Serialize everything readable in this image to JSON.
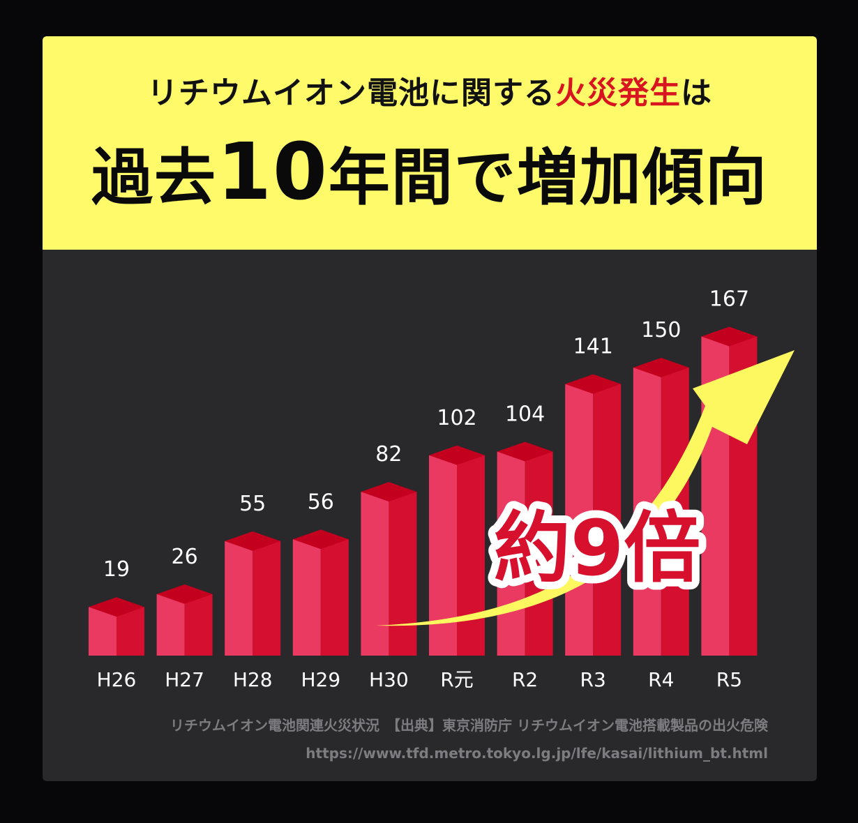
{
  "header": {
    "line1_prefix": "リチウムイオン電池に関する",
    "line1_highlight": "火災発生",
    "line1_suffix": "は",
    "line2_prefix": "過去",
    "line2_number": "10",
    "line2_suffix": "年間で増加傾向"
  },
  "callout": {
    "text_pre": "約",
    "text_num": "9",
    "text_post": "倍"
  },
  "source": {
    "line1": "リチウムイオン電池関連火災状況　【出典】東京消防庁  リチウムイオン電池搭載製品の出火危険",
    "line2": "https://www.tfd.metro.tokyo.lg.jp/lfe/kasai/lithium_bt.html"
  },
  "colors": {
    "header_bg": "#fefa6a",
    "highlight_red": "#d7141f",
    "panel_bg": "#29282b",
    "bar_front": "#ea3a62",
    "bar_side": "#d50f30",
    "bar_top": "#c4001f",
    "arrow": "#fdf85f"
  },
  "chart_data": {
    "type": "bar",
    "title": "リチウムイオン電池関連火災状況",
    "categories": [
      "H26",
      "H27",
      "H28",
      "H29",
      "H30",
      "R元",
      "R2",
      "R3",
      "R4",
      "R5"
    ],
    "values": [
      19,
      26,
      55,
      56,
      82,
      102,
      104,
      141,
      150,
      167
    ],
    "xlabel": "",
    "ylabel": "",
    "ylim": [
      0,
      180
    ],
    "grid": false,
    "legend": "none",
    "annotations": [
      "約9倍 (upward arrow)"
    ]
  }
}
